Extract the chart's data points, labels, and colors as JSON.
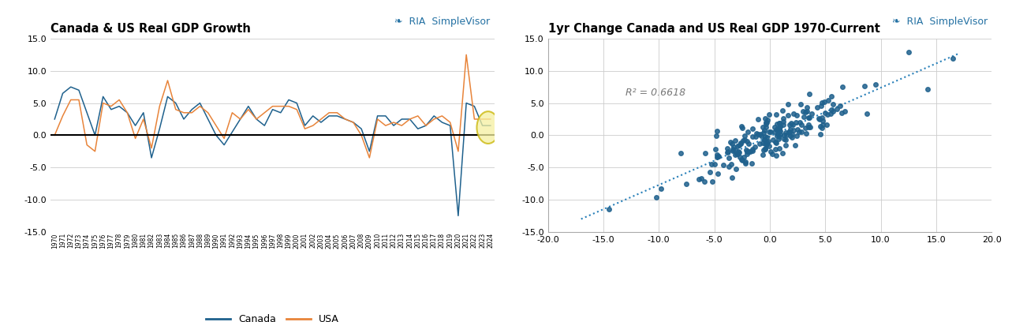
{
  "title_left": "Canada & US Real GDP Growth",
  "title_right": "1yr Change Canada and US Real GDP 1970-Current",
  "left_ylim": [
    -15.0,
    15.0
  ],
  "left_yticks": [
    -15.0,
    -10.0,
    -5.0,
    0.0,
    5.0,
    10.0,
    15.0
  ],
  "right_xlim": [
    -20.0,
    20.0
  ],
  "right_ylim": [
    -15.0,
    15.0
  ],
  "right_xticks": [
    -20.0,
    -15.0,
    -10.0,
    -5.0,
    0.0,
    5.0,
    10.0,
    15.0,
    20.0
  ],
  "right_yticks": [
    -15.0,
    -10.0,
    -5.0,
    0.0,
    5.0,
    10.0,
    15.0
  ],
  "r_squared": "R² = 0.6618",
  "canada_color": "#1F618D",
  "usa_color": "#E8843A",
  "scatter_color": "#1F618D",
  "trendline_color": "#2980B9",
  "background_color": "#FFFFFF",
  "grid_color": "#CCCCCC",
  "title_fontsize": 10.5,
  "years": [
    "1970",
    "1971",
    "1972",
    "1973",
    "1974",
    "1975",
    "1976",
    "1977",
    "1978",
    "1979",
    "1980",
    "1981",
    "1982",
    "1983",
    "1984",
    "1985",
    "1986",
    "1987",
    "1988",
    "1989",
    "1990",
    "1991",
    "1992",
    "1993",
    "1994",
    "1995",
    "1996",
    "1997",
    "1998",
    "1999",
    "2000",
    "2001",
    "2002",
    "2003",
    "2004",
    "2005",
    "2006",
    "2007",
    "2008",
    "2009",
    "2010",
    "2011",
    "2012",
    "2013",
    "2014",
    "2015",
    "2016",
    "2017",
    "2018",
    "2019",
    "2020",
    "2021",
    "2022",
    "2023",
    "2024"
  ],
  "canada_gdp": [
    2.5,
    6.5,
    7.5,
    7.0,
    3.5,
    0.0,
    6.0,
    4.0,
    4.5,
    3.5,
    1.5,
    3.5,
    -3.5,
    1.0,
    6.0,
    5.0,
    2.5,
    4.0,
    5.0,
    2.5,
    0.0,
    -1.5,
    0.5,
    2.5,
    4.5,
    2.5,
    1.5,
    4.0,
    3.5,
    5.5,
    5.0,
    1.5,
    3.0,
    2.0,
    3.0,
    3.0,
    2.5,
    2.0,
    1.0,
    -2.5,
    3.0,
    3.0,
    1.5,
    2.5,
    2.5,
    1.0,
    1.5,
    3.0,
    2.0,
    1.5,
    -12.5,
    5.0,
    4.5,
    1.5,
    1.5
  ],
  "usa_gdp": [
    0.0,
    3.0,
    5.5,
    5.5,
    -1.5,
    -2.5,
    5.0,
    4.5,
    5.5,
    3.5,
    -0.5,
    2.5,
    -2.0,
    4.5,
    8.5,
    4.0,
    3.5,
    3.5,
    4.5,
    3.5,
    1.5,
    -0.5,
    3.5,
    2.5,
    4.0,
    2.5,
    3.5,
    4.5,
    4.5,
    4.5,
    4.0,
    1.0,
    1.5,
    2.5,
    3.5,
    3.5,
    2.5,
    2.0,
    0.0,
    -3.5,
    2.5,
    1.5,
    2.0,
    1.5,
    2.5,
    3.0,
    1.5,
    2.5,
    3.0,
    2.0,
    -2.5,
    12.5,
    2.5,
    2.5,
    2.5
  ]
}
